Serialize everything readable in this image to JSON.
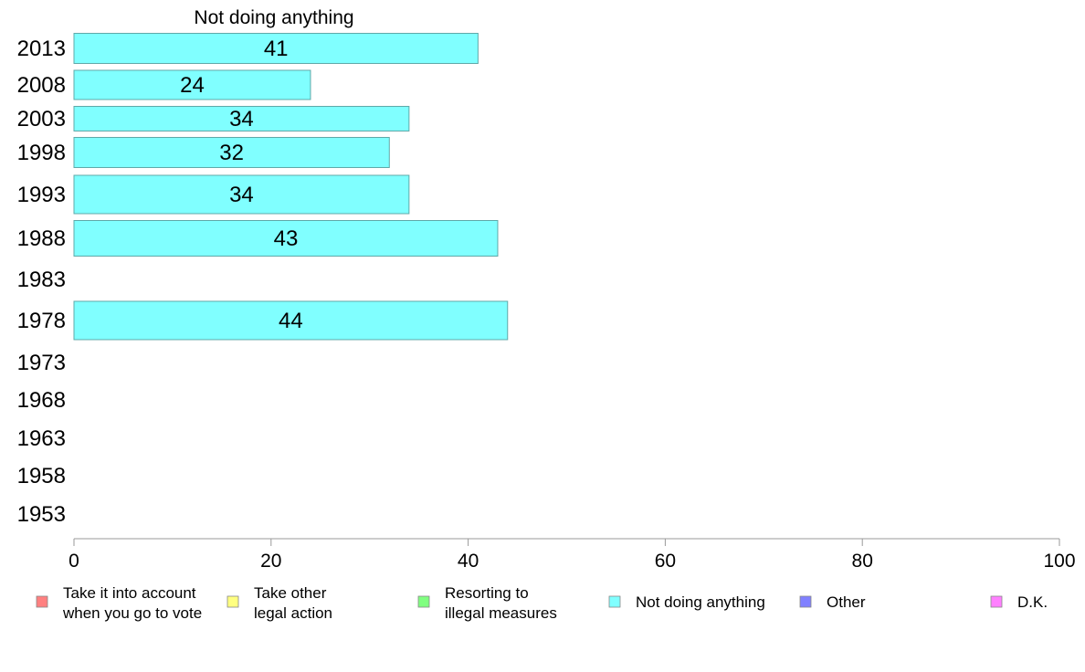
{
  "chart_data": {
    "type": "bar",
    "orientation": "horizontal",
    "title": "Not doing anything",
    "categories": [
      "2013",
      "2008",
      "2003",
      "1998",
      "1993",
      "1988",
      "1983",
      "1978",
      "1973",
      "1968",
      "1963",
      "1958",
      "1953"
    ],
    "series": [
      {
        "name": "Not doing anything",
        "color": "#80ffff",
        "values": [
          41,
          24,
          34,
          32,
          34,
          43,
          null,
          44,
          null,
          null,
          null,
          null,
          null
        ]
      }
    ],
    "xlim": [
      0,
      100
    ],
    "xticks": [
      "0",
      "20",
      "40",
      "60",
      "80",
      "100"
    ],
    "grid": false,
    "legend_position": "bottom",
    "legend": [
      {
        "lines": [
          "Take it into account",
          "when you go to vote"
        ],
        "color": "#ff8080"
      },
      {
        "lines": [
          "Take other",
          "legal action"
        ],
        "color": "#ffff80"
      },
      {
        "lines": [
          "Resorting to",
          "illegal measures"
        ],
        "color": "#80ff80"
      },
      {
        "lines": [
          "Not doing anything"
        ],
        "color": "#80ffff"
      },
      {
        "lines": [
          "Other"
        ],
        "color": "#8080ff"
      },
      {
        "lines": [
          "D.K."
        ],
        "color": "#ff80ff"
      }
    ]
  }
}
